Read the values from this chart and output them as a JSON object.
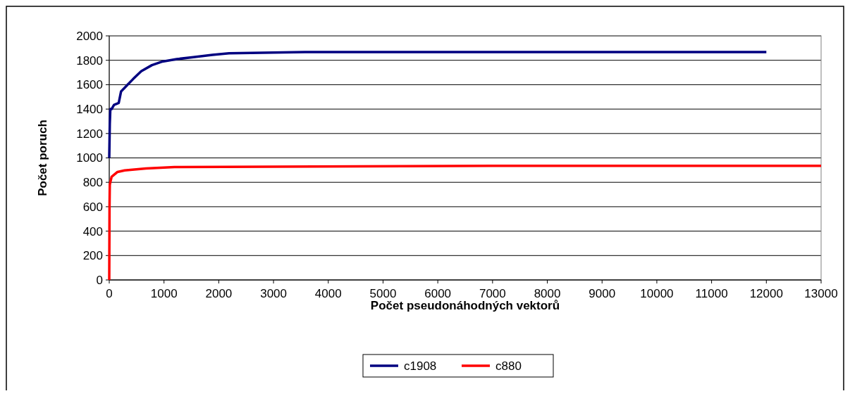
{
  "chart_data": {
    "type": "line",
    "xlabel": "Počet pseudonáhodných vektorů",
    "ylabel": "Počet poruch",
    "xlim": [
      0,
      13000
    ],
    "xticks": [
      0,
      1000,
      2000,
      3000,
      4000,
      5000,
      6000,
      7000,
      8000,
      9000,
      10000,
      11000,
      12000,
      13000
    ],
    "ylim": [
      0,
      2000
    ],
    "yticks": [
      0,
      200,
      400,
      600,
      800,
      1000,
      1200,
      1400,
      1600,
      1800,
      2000
    ],
    "grid": "y",
    "legend": "bottom",
    "marker": "none",
    "line_style": "solid",
    "series": [
      {
        "name": "c1908",
        "color": "#000080",
        "x": [
          0,
          10,
          20,
          43,
          87,
          173,
          216,
          325,
          433,
          584,
          779,
          974,
          1234,
          1537,
          1883,
          2187,
          3573,
          12000
        ],
        "values": [
          1000,
          1280,
          1400,
          1400,
          1435,
          1450,
          1545,
          1595,
          1645,
          1710,
          1760,
          1790,
          1810,
          1825,
          1845,
          1858,
          1867,
          1867
        ]
      },
      {
        "name": "c880",
        "color": "#ff0000",
        "x": [
          0,
          5,
          10,
          20,
          43,
          151,
          281,
          671,
          1191,
          7000,
          13000
        ],
        "values": [
          0,
          600,
          780,
          800,
          845,
          885,
          898,
          914,
          925,
          935,
          935
        ]
      }
    ]
  }
}
